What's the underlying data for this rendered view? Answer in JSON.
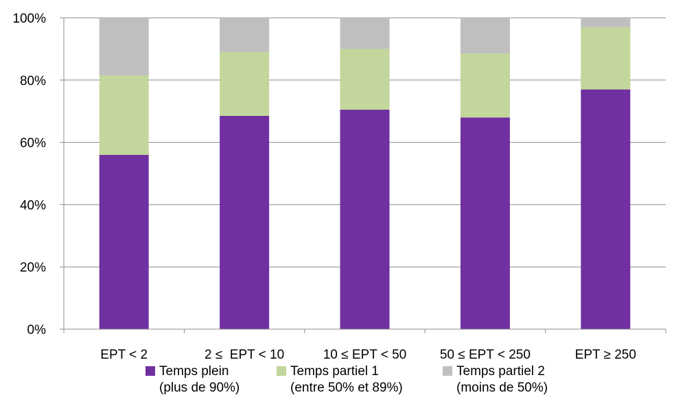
{
  "chart_data": {
    "type": "bar",
    "stacked": true,
    "categories": [
      "EPT < 2",
      "2 ≤  EPT < 10",
      "10 ≤ EPT < 50",
      "50 ≤ EPT < 250",
      "EPT ≥ 250"
    ],
    "series": [
      {
        "name": "Temps plein",
        "name_line2": "(plus de 90%)",
        "color": "#7030a0",
        "values": [
          56,
          68.5,
          70.5,
          68,
          77
        ]
      },
      {
        "name": "Temps partiel 1",
        "name_line2": "(entre 50% et 89%)",
        "color": "#c3d69b",
        "values": [
          25.5,
          20.5,
          19.5,
          20.5,
          20
        ]
      },
      {
        "name": "Temps partiel 2",
        "name_line2": "(moins de 50%)",
        "color": "#bfbfbf",
        "values": [
          18.5,
          11,
          10,
          11.5,
          3
        ]
      }
    ],
    "yticks": [
      "0%",
      "20%",
      "40%",
      "60%",
      "80%",
      "100%"
    ],
    "ylim": [
      0,
      100
    ],
    "grid": true,
    "legend_position": "bottom"
  }
}
